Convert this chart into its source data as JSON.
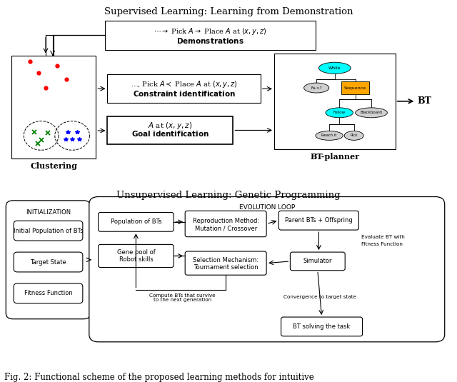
{
  "title_supervised": "Supervised Learning: Learning from Demonstration",
  "title_unsupervised": "Unsupervised Learning: Genetic Programming",
  "caption": "Fig. 2: Functional scheme of the proposed learning methods for intuitive",
  "bg_color": "#ffffff"
}
